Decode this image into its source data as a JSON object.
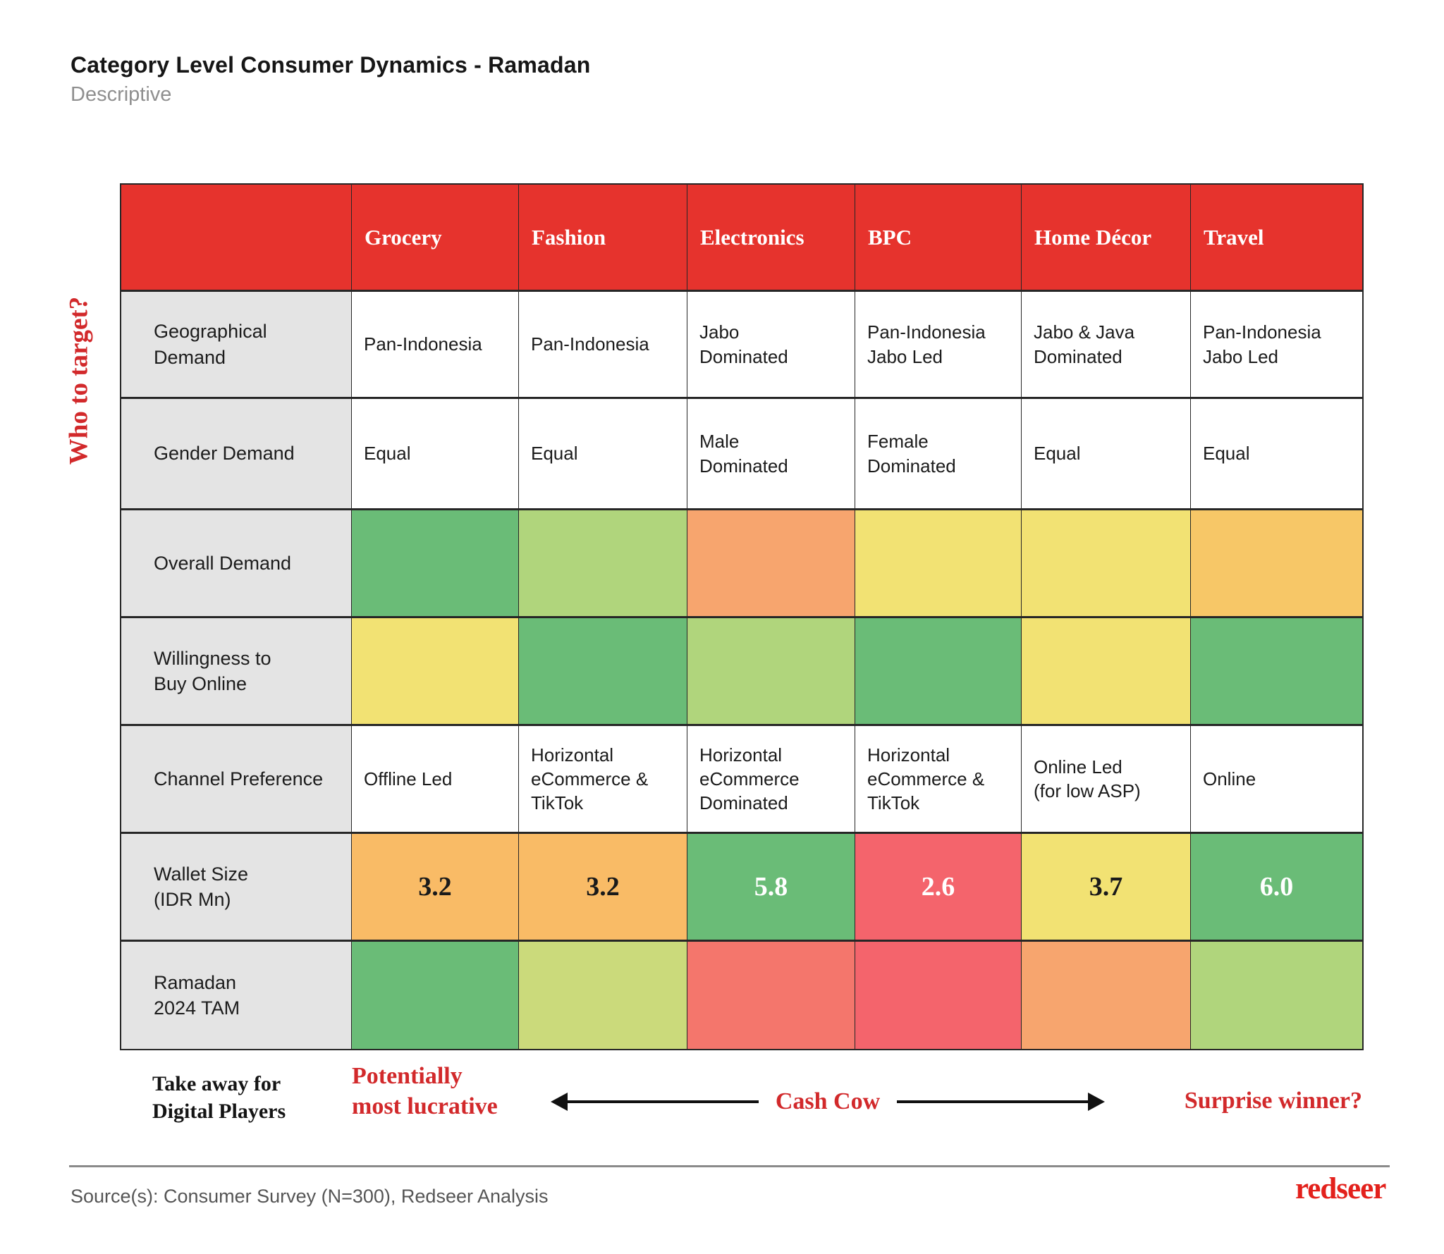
{
  "palette": {
    "header_red": "#E6332D",
    "accent_red": "#D2292B",
    "logo_red": "#E3211C",
    "label_bg": "#E4E4E4",
    "green": "#6ABC77",
    "light_green": "#B0D57C",
    "yellow_green": "#CBDA7B",
    "yellow": "#F2E273",
    "amber": "#F7C767",
    "orange": "#F9BB66",
    "salmon": "#F7A56E",
    "salmon_red": "#F4766C",
    "red": "#F4646C",
    "dark": "#1A1A1A",
    "white": "#FFFFFF"
  },
  "header": {
    "title": "Category Level Consumer Dynamics - Ramadan",
    "subtitle": "Descriptive"
  },
  "side_label": "Who to target?",
  "table": {
    "columns": [
      "Grocery",
      "Fashion",
      "Electronics",
      "BPC",
      "Home Décor",
      "Travel"
    ],
    "rows": [
      {
        "label": "Geographical\nDemand",
        "kind": "text",
        "cells": [
          "Pan-Indonesia",
          "Pan-Indonesia",
          "Jabo\nDominated",
          "Pan-Indonesia\nJabo Led",
          "Jabo & Java\nDominated",
          "Pan-Indonesia\nJabo Led"
        ]
      },
      {
        "label": "Gender Demand",
        "kind": "text",
        "cells": [
          "Equal",
          "Equal",
          "Male\nDominated",
          "Female\nDominated",
          "Equal",
          "Equal"
        ]
      },
      {
        "label": "Overall Demand",
        "kind": "color",
        "colors": [
          "green",
          "light_green",
          "salmon",
          "yellow",
          "yellow",
          "amber"
        ]
      },
      {
        "label": "Willingness to\nBuy Online",
        "kind": "color",
        "colors": [
          "yellow",
          "green",
          "light_green",
          "green",
          "yellow",
          "green"
        ]
      },
      {
        "label": "Channel Preference",
        "kind": "text",
        "cells": [
          "Offline Led",
          "Horizontal\neCommerce &\nTikTok",
          "Horizontal\neCommerce\nDominated",
          "Horizontal\neCommerce &\nTikTok",
          "Online Led\n(for low ASP)",
          "Online"
        ]
      },
      {
        "label": "Wallet Size\n(IDR Mn)",
        "kind": "value",
        "cells": [
          "3.2",
          "3.2",
          "5.8",
          "2.6",
          "3.7",
          "6.0"
        ],
        "colors": [
          "orange",
          "orange",
          "green",
          "red",
          "yellow",
          "green"
        ],
        "text_colors": [
          "dark",
          "dark",
          "white",
          "white",
          "dark",
          "white"
        ]
      },
      {
        "label": "Ramadan\n2024 TAM",
        "kind": "color",
        "colors": [
          "green",
          "yellow_green",
          "salmon_red",
          "red",
          "salmon",
          "light_green"
        ]
      }
    ]
  },
  "takeaway": {
    "label": "Take away for\nDigital Players",
    "left": "Potentially\nmost lucrative",
    "center": "Cash Cow",
    "right": "Surprise winner?"
  },
  "footer": {
    "source": "Source(s): Consumer Survey (N=300), Redseer Analysis",
    "logo": "redseer"
  },
  "chart_data": {
    "type": "heatmap",
    "title": "Category Level Consumer Dynamics - Ramadan",
    "subtitle": "Descriptive",
    "columns": [
      "Grocery",
      "Fashion",
      "Electronics",
      "BPC",
      "Home Décor",
      "Travel"
    ],
    "rows": [
      {
        "label": "Geographical Demand",
        "values": [
          "Pan-Indonesia",
          "Pan-Indonesia",
          "Jabo Dominated",
          "Pan-Indonesia Jabo Led",
          "Jabo & Java Dominated",
          "Pan-Indonesia Jabo Led"
        ]
      },
      {
        "label": "Gender Demand",
        "values": [
          "Equal",
          "Equal",
          "Male Dominated",
          "Female Dominated",
          "Equal",
          "Equal"
        ]
      },
      {
        "label": "Overall Demand",
        "values": [
          "green",
          "light-green",
          "salmon-orange",
          "yellow",
          "yellow",
          "amber"
        ]
      },
      {
        "label": "Willingness to Buy Online",
        "values": [
          "yellow",
          "green",
          "light-green",
          "green",
          "yellow",
          "green"
        ]
      },
      {
        "label": "Channel Preference",
        "values": [
          "Offline Led",
          "Horizontal eCommerce & TikTok",
          "Horizontal eCommerce Dominated",
          "Horizontal eCommerce & TikTok",
          "Online Led (for low ASP)",
          "Online"
        ]
      },
      {
        "label": "Wallet Size (IDR Mn)",
        "values": [
          3.2,
          3.2,
          5.8,
          2.6,
          3.7,
          6.0
        ]
      },
      {
        "label": "Ramadan 2024 TAM",
        "values": [
          "green",
          "yellow-green",
          "salmon-red",
          "red",
          "orange",
          "light-green"
        ]
      }
    ],
    "color_scale_note": "green = favorable/high, yellow = medium, orange/red = low",
    "annotations": [
      "Potentially most lucrative",
      "Cash Cow",
      "Surprise winner?"
    ]
  }
}
